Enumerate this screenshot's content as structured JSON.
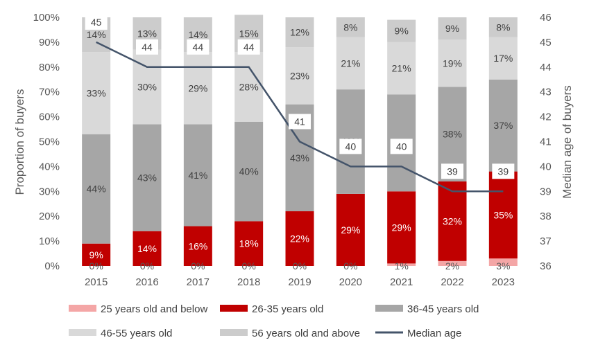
{
  "chart_data": {
    "type": "bar",
    "stacked": true,
    "categories": [
      "2015",
      "2016",
      "2017",
      "2018",
      "2019",
      "2020",
      "2021",
      "2022",
      "2023"
    ],
    "ylabel": "Proportion of buyers",
    "y2label": "Median age of buyers",
    "ylim": [
      0,
      100
    ],
    "y2lim": [
      36,
      46
    ],
    "y_ticks": [
      "0%",
      "10%",
      "20%",
      "30%",
      "40%",
      "50%",
      "60%",
      "70%",
      "80%",
      "90%",
      "100%"
    ],
    "y2_ticks": [
      "36",
      "37",
      "38",
      "39",
      "40",
      "41",
      "42",
      "43",
      "44",
      "45",
      "46"
    ],
    "series": [
      {
        "name": "25 years old and below",
        "color": "#f4a6a6",
        "label_color": "#595959",
        "values": [
          0,
          0,
          0,
          0,
          0,
          0,
          1,
          2,
          3
        ],
        "labels": [
          "0%",
          "0%",
          "0%",
          "0%",
          "0%",
          "0%",
          "1%",
          "2%",
          "3%"
        ]
      },
      {
        "name": "26-35 years old",
        "color": "#c00000",
        "label_color": "#ffffff",
        "values": [
          9,
          14,
          16,
          18,
          22,
          29,
          29,
          32,
          35
        ],
        "labels": [
          "9%",
          "14%",
          "16%",
          "18%",
          "22%",
          "29%",
          "29%",
          "32%",
          "35%"
        ]
      },
      {
        "name": "36-45 years old",
        "color": "#a6a6a6",
        "label_color": "#404040",
        "values": [
          44,
          43,
          41,
          40,
          43,
          42,
          39,
          38,
          37
        ],
        "labels": [
          "44%",
          "43%",
          "41%",
          "40%",
          "43%",
          "42%",
          "39%",
          "38%",
          "37%"
        ]
      },
      {
        "name": "46-55 years old",
        "color": "#d9d9d9",
        "label_color": "#404040",
        "values": [
          33,
          30,
          29,
          28,
          23,
          21,
          21,
          19,
          17
        ],
        "labels": [
          "33%",
          "30%",
          "29%",
          "28%",
          "23%",
          "21%",
          "21%",
          "19%",
          "17%"
        ]
      },
      {
        "name": "56 years old and above",
        "color": "#cccccc",
        "label_color": "#404040",
        "values": [
          14,
          13,
          14,
          15,
          12,
          8,
          9,
          9,
          8
        ],
        "labels": [
          "14%",
          "13%",
          "14%",
          "15%",
          "12%",
          "8%",
          "9%",
          "9%",
          "8%"
        ]
      }
    ],
    "line": {
      "name": "Median age",
      "color": "#44546a",
      "axis": "secondary",
      "values": [
        45,
        44,
        44,
        44,
        41,
        40,
        40,
        39,
        39
      ],
      "labels": [
        "45",
        "44",
        "44",
        "44",
        "41",
        "40",
        "40",
        "39",
        "39"
      ]
    },
    "legend": {
      "position": "bottom"
    },
    "grid": false
  }
}
